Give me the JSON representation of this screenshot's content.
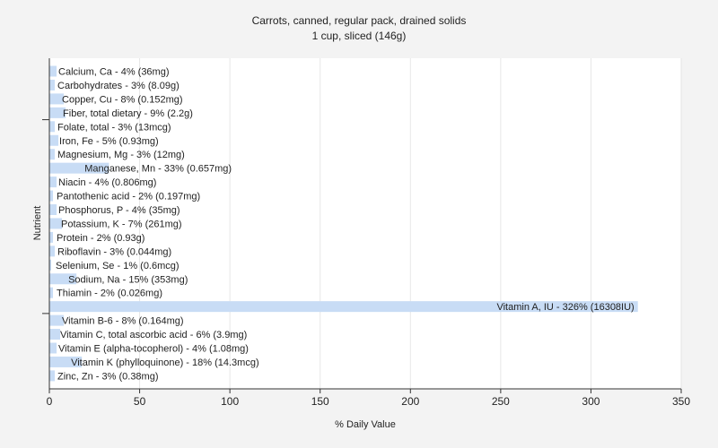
{
  "chart_data": {
    "type": "bar",
    "orientation": "horizontal",
    "title": "Carrots, canned, regular pack, drained solids",
    "subtitle": "1 cup, sliced (146g)",
    "xlabel": "% Daily Value",
    "ylabel": "Nutrient",
    "xlim": [
      0,
      350
    ],
    "xticks": [
      0,
      50,
      100,
      150,
      200,
      250,
      300,
      350
    ],
    "grid": true,
    "bar_color": "#c8dcf5",
    "categories": [
      "Calcium, Ca",
      "Carbohydrates",
      "Copper, Cu",
      "Fiber, total dietary",
      "Folate, total",
      "Iron, Fe",
      "Magnesium, Mg",
      "Manganese, Mn",
      "Niacin",
      "Pantothenic acid",
      "Phosphorus, P",
      "Potassium, K",
      "Protein",
      "Riboflavin",
      "Selenium, Se",
      "Sodium, Na",
      "Thiamin",
      "Vitamin A, IU",
      "Vitamin B-6",
      "Vitamin C, total ascorbic acid",
      "Vitamin E (alpha-tocopherol)",
      "Vitamin K (phylloquinone)",
      "Zinc, Zn"
    ],
    "values": [
      4,
      3,
      8,
      9,
      3,
      5,
      3,
      33,
      4,
      2,
      4,
      7,
      2,
      3,
      1,
      15,
      2,
      326,
      8,
      6,
      4,
      18,
      3
    ],
    "labels": [
      "Calcium, Ca - 4% (36mg)",
      "Carbohydrates - 3% (8.09g)",
      "Copper, Cu - 8% (0.152mg)",
      "Fiber, total dietary - 9% (2.2g)",
      "Folate, total - 3% (13mcg)",
      "Iron, Fe - 5% (0.93mg)",
      "Magnesium, Mg - 3% (12mg)",
      "Manganese, Mn - 33% (0.657mg)",
      "Niacin - 4% (0.806mg)",
      "Pantothenic acid - 2% (0.197mg)",
      "Phosphorus, P - 4% (35mg)",
      "Potassium, K - 7% (261mg)",
      "Protein - 2% (0.93g)",
      "Riboflavin - 3% (0.044mg)",
      "Selenium, Se - 1% (0.6mcg)",
      "Sodium, Na - 15% (353mg)",
      "Thiamin - 2% (0.026mg)",
      "Vitamin A, IU - 326% (16308IU)",
      "Vitamin B-6 - 8% (0.164mg)",
      "Vitamin C, total ascorbic acid - 6% (3.9mg)",
      "Vitamin E (alpha-tocopherol) - 4% (1.08mg)",
      "Vitamin K (phylloquinone) - 18% (14.3mcg)",
      "Zinc, Zn - 3% (0.38mg)"
    ]
  }
}
